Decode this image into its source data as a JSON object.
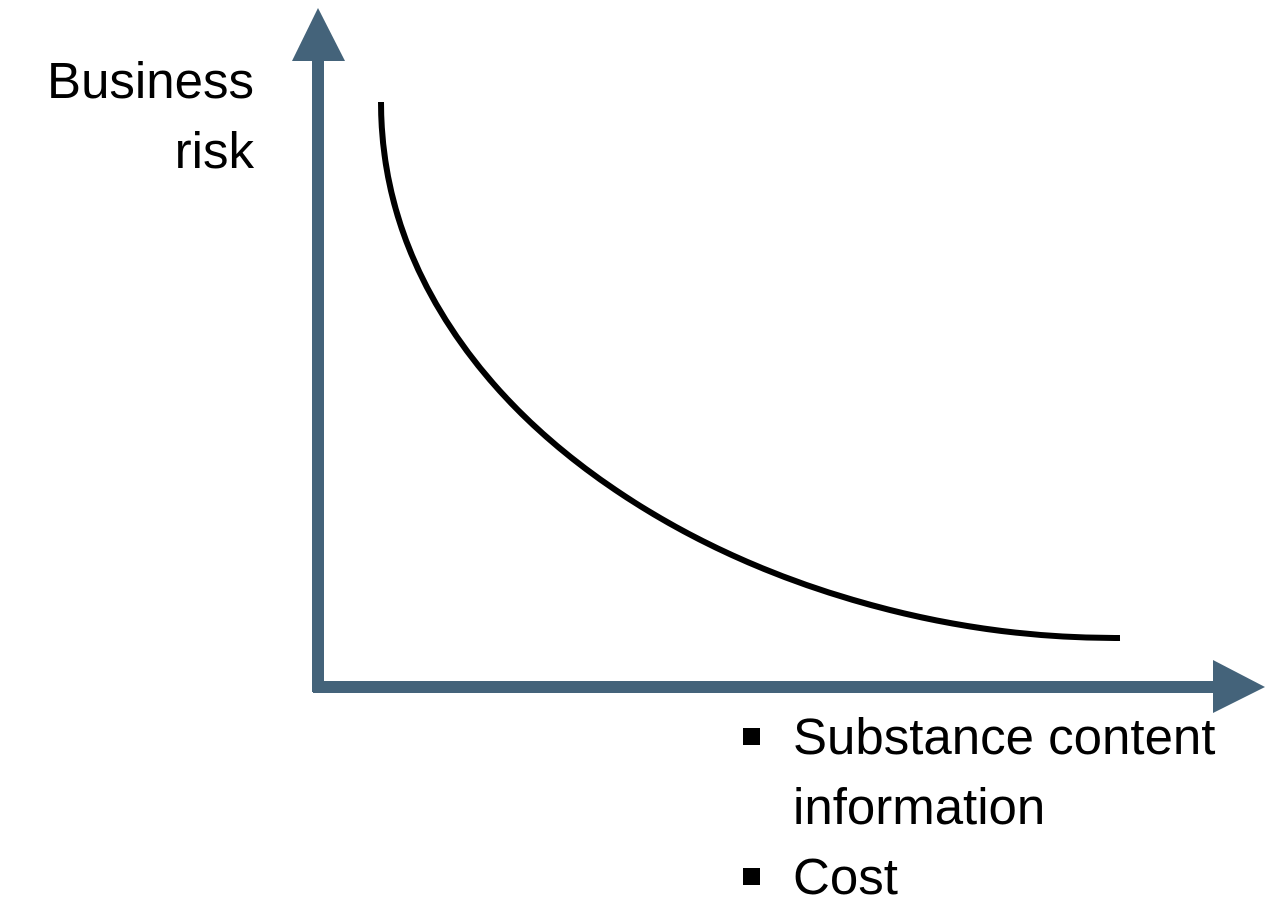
{
  "y_axis": {
    "label": "Business risk"
  },
  "x_axis": {
    "items": [
      "Substance content information",
      "Cost"
    ]
  }
}
